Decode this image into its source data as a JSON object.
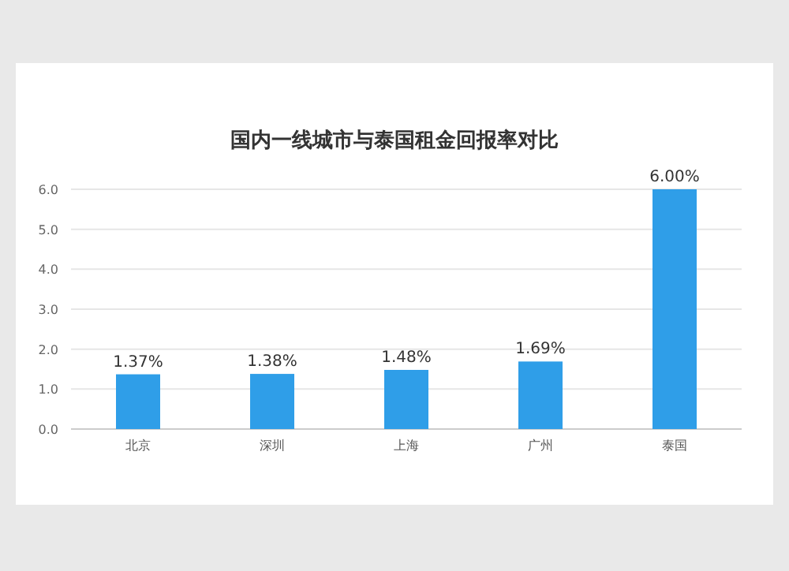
{
  "chart_data": {
    "type": "bar",
    "title": "国内一线城市与泰国租金回报率对比",
    "categories": [
      "北京",
      "深圳",
      "上海",
      "广州",
      "泰国"
    ],
    "values": [
      1.37,
      1.38,
      1.48,
      1.69,
      6.0
    ],
    "value_labels": [
      "1.37%",
      "1.38%",
      "1.48%",
      "1.69%",
      "6.00%"
    ],
    "color": "#2f9ee8",
    "ylim": [
      0,
      6
    ],
    "yticks": [
      {
        "value": 0,
        "label": "0.0"
      },
      {
        "value": 1,
        "label": "1.0"
      },
      {
        "value": 2,
        "label": "2.0"
      },
      {
        "value": 3,
        "label": "3.0"
      },
      {
        "value": 4,
        "label": "4.0"
      },
      {
        "value": 5,
        "label": "5.0"
      },
      {
        "value": 6,
        "label": "6.0"
      }
    ],
    "grid": "y"
  }
}
